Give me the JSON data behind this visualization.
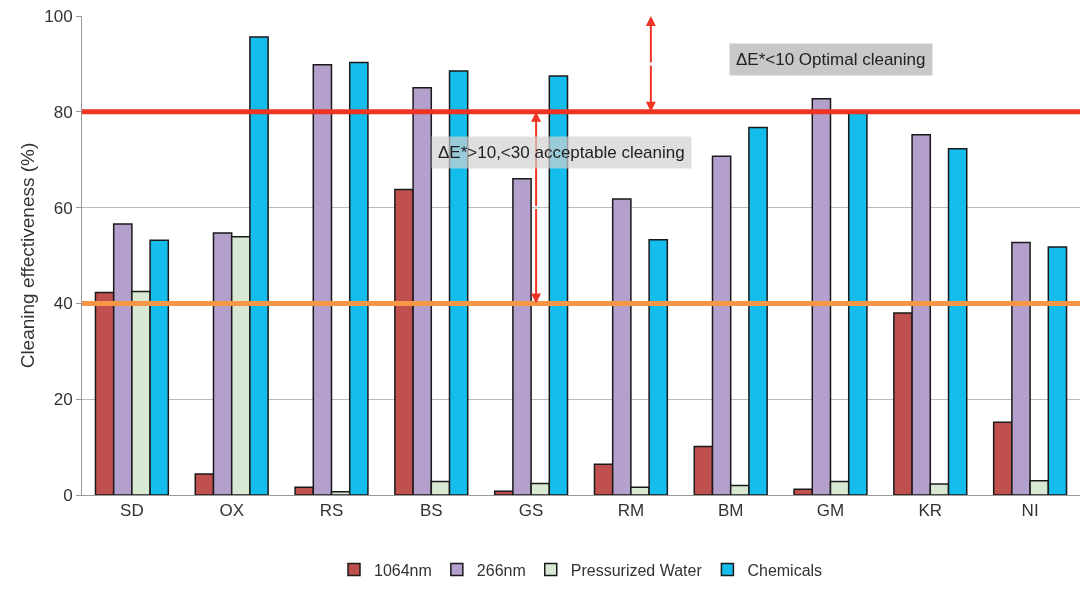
{
  "chart_data": {
    "type": "bar",
    "ylabel": "Cleaning effectiveness (%)",
    "categories": [
      "SD",
      "OX",
      "RS",
      "BS",
      "GS",
      "RM",
      "BM",
      "GM",
      "KR",
      "NI"
    ],
    "series": [
      {
        "name": "1064nm",
        "color": "#c0504d",
        "values": [
          42.3,
          4.4,
          1.6,
          63.8,
          0.8,
          6.4,
          10.1,
          1.2,
          38.0,
          15.2
        ]
      },
      {
        "name": "266nm",
        "color": "#b4a0cc",
        "values": [
          56.6,
          54.7,
          89.8,
          85.0,
          66.0,
          61.8,
          70.7,
          82.7,
          75.2,
          52.7
        ]
      },
      {
        "name": "Pressurized Water",
        "color": "#d7e9d3",
        "values": [
          42.5,
          53.9,
          0.7,
          2.8,
          2.4,
          1.6,
          2.0,
          2.8,
          2.3,
          3.0
        ]
      },
      {
        "name": "Chemicals",
        "color": "#14bdec",
        "values": [
          53.2,
          95.6,
          90.3,
          88.5,
          87.5,
          53.3,
          76.7,
          79.8,
          72.3,
          51.8
        ]
      }
    ],
    "ylim": [
      0,
      100
    ],
    "yticks": [
      0,
      20,
      40,
      60,
      80,
      100
    ],
    "grid": "y",
    "legend": "bottom",
    "ref_lines": [
      {
        "axis": "y",
        "value": 80,
        "color": "#ee3524"
      },
      {
        "axis": "y",
        "value": 40,
        "color": "#f79646"
      }
    ],
    "annotations": [
      "ΔE*<10 Optimal cleaning",
      "ΔE*>10,<30 acceptable cleaning"
    ]
  }
}
